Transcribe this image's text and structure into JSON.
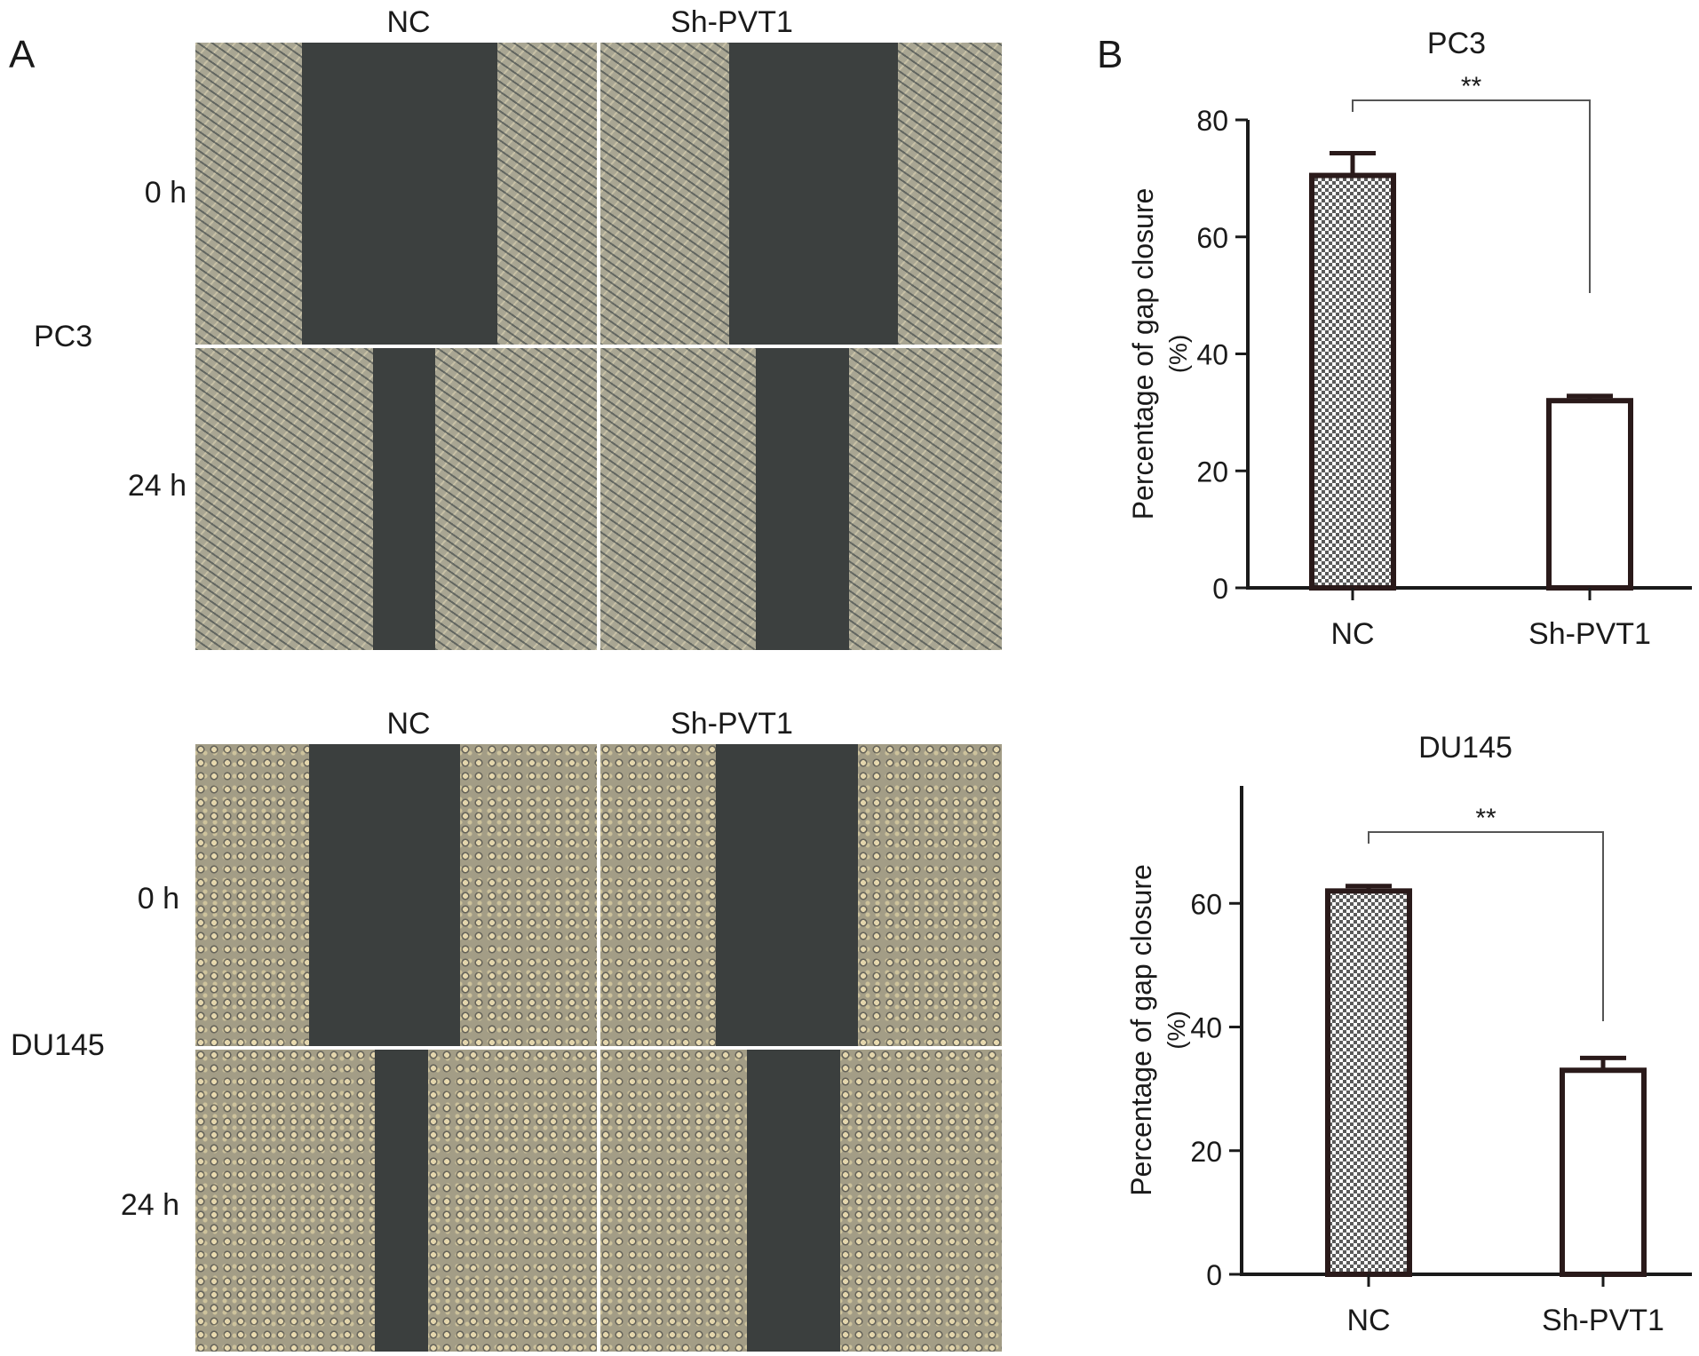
{
  "panel_a": {
    "letter": "A",
    "columns": [
      "NC",
      "Sh-PVT1"
    ],
    "groups": [
      {
        "cell_line": "PC3",
        "rows": [
          "0 h",
          "24 h"
        ]
      },
      {
        "cell_line": "DU145",
        "rows": [
          "0 h",
          "24 h"
        ]
      }
    ]
  },
  "panel_b": {
    "letter": "B"
  },
  "chart_data": [
    {
      "type": "bar",
      "title": "PC3",
      "categories": [
        "NC",
        "Sh-PVT1"
      ],
      "values": [
        70.5,
        32
      ],
      "errors": [
        3.8,
        0.8
      ],
      "ylabel": "Percentage of gap closure",
      "ylabel_unit": "(%)",
      "ylim": [
        0,
        80
      ],
      "yticks": [
        "0",
        "20",
        "40",
        "60",
        "80"
      ],
      "significance": "**",
      "bar_styles": [
        "checkered",
        "white"
      ]
    },
    {
      "type": "bar",
      "title": "DU145",
      "categories": [
        "NC",
        "Sh-PVT1"
      ],
      "values": [
        62,
        33
      ],
      "errors": [
        0.8,
        2
      ],
      "ylabel": "Percentage of gap closure",
      "ylabel_unit": "(%)",
      "ylim": [
        0,
        80
      ],
      "yticks": [
        "0",
        "20",
        "40",
        "60"
      ],
      "significance": "**",
      "bar_styles": [
        "checkered",
        "white"
      ]
    }
  ]
}
